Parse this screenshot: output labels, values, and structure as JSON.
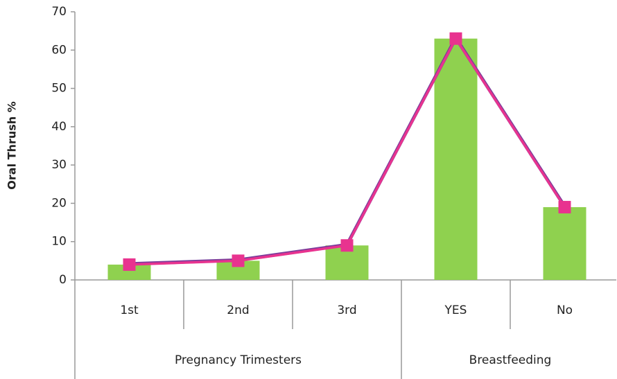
{
  "chart_data": {
    "type": "combo",
    "y_label": "Oral Thrush %",
    "categories": [
      "1st",
      "2nd",
      "3rd",
      "YES",
      "No"
    ],
    "groups": [
      {
        "label": "Pregnancy Trimesters",
        "count": 3
      },
      {
        "label": "Breastfeeding",
        "count": 2
      }
    ],
    "series": [
      {
        "type": "bar",
        "color": "#8fd14f",
        "values": [
          4,
          5,
          9,
          63,
          19
        ]
      },
      {
        "type": "line",
        "color": "#e8338f",
        "values": [
          4,
          5,
          9,
          63,
          19
        ]
      }
    ],
    "ylim": [
      0,
      70
    ],
    "yticks": [
      0,
      10,
      20,
      30,
      40,
      50,
      60,
      70
    ],
    "grid": false
  }
}
